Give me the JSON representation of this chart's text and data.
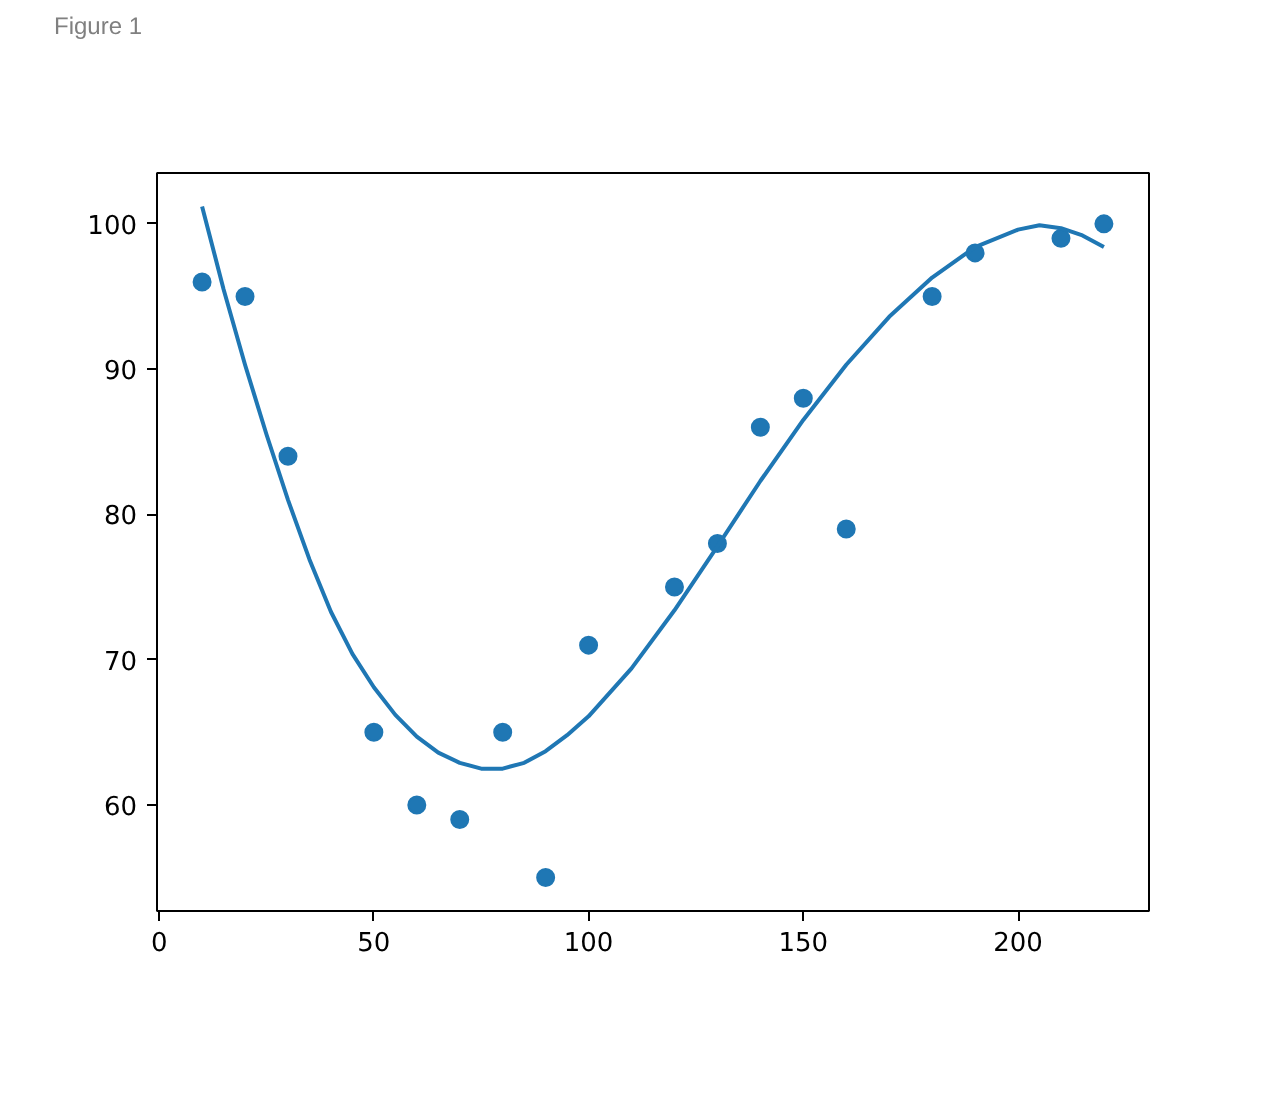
{
  "chart_data": {
    "type": "scatter",
    "title": "Figure 1",
    "series": [
      {
        "color": "#1f77b4",
        "marker": "circle",
        "x": [
          10,
          20,
          30,
          50,
          60,
          70,
          80,
          90,
          100,
          120,
          130,
          140,
          150,
          160,
          180,
          190,
          210,
          220
        ],
        "values": [
          96,
          95,
          84,
          65,
          60,
          59,
          65,
          55,
          71,
          75,
          78,
          86,
          88,
          79,
          95,
          98,
          99,
          100
        ]
      },
      {
        "type": "line",
        "color": "#1f77b4",
        "line_style": "solid",
        "x": [
          10,
          15,
          20,
          25,
          30,
          35,
          40,
          45,
          50,
          55,
          60,
          65,
          70,
          75,
          80,
          85,
          90,
          95,
          100,
          110,
          120,
          130,
          140,
          150,
          160,
          170,
          180,
          190,
          200,
          205,
          210,
          215,
          220
        ],
        "values": [
          101.2,
          95.5,
          90.3,
          85.5,
          81.0,
          76.9,
          73.3,
          70.4,
          68.1,
          66.2,
          64.7,
          63.6,
          62.9,
          62.5,
          62.5,
          62.9,
          63.7,
          64.8,
          66.1,
          69.4,
          73.4,
          77.8,
          82.3,
          86.5,
          90.3,
          93.6,
          96.3,
          98.4,
          99.6,
          99.9,
          99.7,
          99.2,
          98.4
        ]
      }
    ],
    "xlim": [
      -0.5,
      230.5
    ],
    "ylim": [
      52.7,
      103.5
    ],
    "xticks": [
      0,
      50,
      100,
      150,
      200
    ],
    "yticks": [
      60,
      70,
      80,
      90,
      100
    ],
    "grid": false
  }
}
